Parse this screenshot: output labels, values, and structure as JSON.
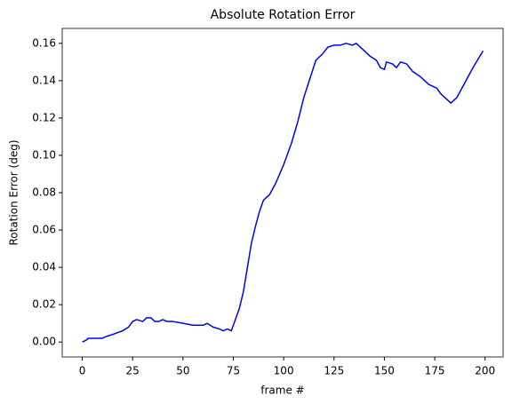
{
  "chart_data": {
    "type": "line",
    "title": "Absolute Rotation Error",
    "xlabel": "frame #",
    "ylabel": "Rotation Error (deg)",
    "x": [
      0,
      2,
      3,
      10,
      12,
      15,
      20,
      23,
      25,
      27,
      30,
      32,
      34,
      36,
      38,
      40,
      42,
      45,
      50,
      55,
      60,
      62,
      65,
      68,
      70,
      72,
      74,
      76,
      78,
      80,
      82,
      84,
      86,
      88,
      90,
      93,
      96,
      100,
      104,
      107,
      110,
      113,
      116,
      119,
      122,
      125,
      128,
      131,
      134,
      136,
      140,
      143,
      146,
      148,
      150,
      151,
      154,
      156,
      158,
      161,
      164,
      168,
      172,
      176,
      178,
      180,
      183,
      186,
      190,
      194,
      199
    ],
    "series": [
      {
        "name": "rotation error",
        "color": "#0000ff",
        "values": [
          0.0,
          0.001,
          0.002,
          0.002,
          0.003,
          0.004,
          0.006,
          0.008,
          0.011,
          0.012,
          0.011,
          0.013,
          0.013,
          0.011,
          0.011,
          0.012,
          0.011,
          0.011,
          0.01,
          0.009,
          0.009,
          0.01,
          0.008,
          0.007,
          0.006,
          0.007,
          0.006,
          0.012,
          0.018,
          0.027,
          0.04,
          0.053,
          0.062,
          0.07,
          0.076,
          0.079,
          0.085,
          0.095,
          0.107,
          0.118,
          0.131,
          0.141,
          0.151,
          0.154,
          0.158,
          0.159,
          0.159,
          0.16,
          0.159,
          0.16,
          0.156,
          0.153,
          0.151,
          0.147,
          0.146,
          0.15,
          0.149,
          0.147,
          0.15,
          0.149,
          0.145,
          0.142,
          0.138,
          0.136,
          0.133,
          0.131,
          0.128,
          0.131,
          0.139,
          0.147,
          0.156
        ]
      }
    ],
    "xlim": [
      -9.95,
      208.95
    ],
    "xticks": [
      0,
      25,
      50,
      75,
      100,
      125,
      150,
      175,
      200
    ],
    "ylim": [
      -0.008,
      0.168
    ],
    "yticks": [
      {
        "value": 0,
        "label": "0.00"
      },
      {
        "value": 0.02,
        "label": "0.02"
      },
      {
        "value": 0.04,
        "label": "0.04"
      },
      {
        "value": 0.06,
        "label": "0.06"
      },
      {
        "value": 0.08,
        "label": "0.08"
      },
      {
        "value": 0.1,
        "label": "0.10"
      },
      {
        "value": 0.12,
        "label": "0.12"
      },
      {
        "value": 0.14,
        "label": "0.14"
      },
      {
        "value": 0.16,
        "label": "0.16"
      }
    ],
    "grid": false
  }
}
